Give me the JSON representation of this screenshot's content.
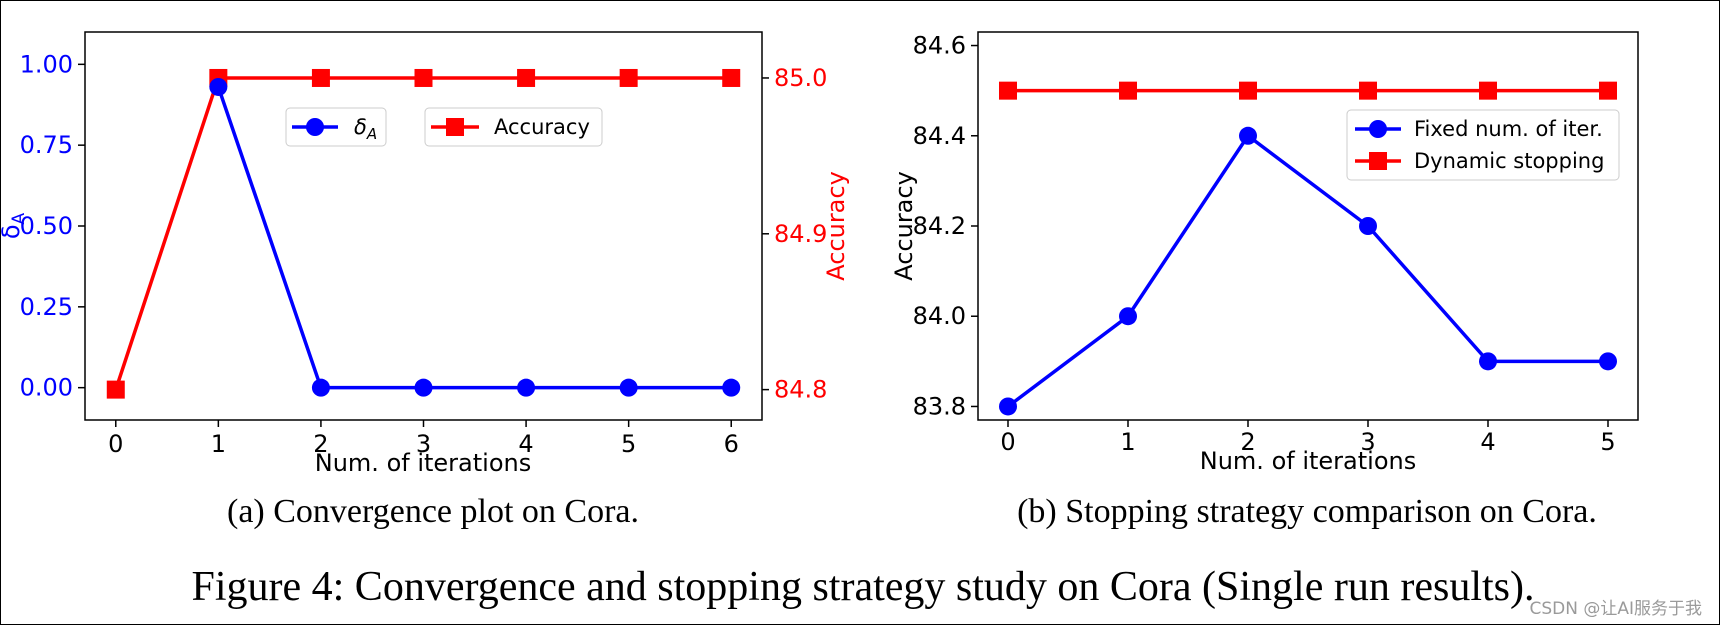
{
  "colors": {
    "blue": "#0000ff",
    "red": "#ff0000",
    "black": "#000000",
    "watermark": "#9a9a9a"
  },
  "chart_data": [
    {
      "type": "line",
      "id": "convergence",
      "caption": "(a) Convergence plot on Cora.",
      "xlabel": "Num. of iterations",
      "x": [
        0,
        1,
        2,
        3,
        4,
        5,
        6
      ],
      "xticks": [
        "0",
        "1",
        "2",
        "3",
        "4",
        "5",
        "6"
      ],
      "xlim": [
        -0.3,
        6.3
      ],
      "left_axis": {
        "label": "δ",
        "label_sub": "A",
        "ylim": [
          -0.1,
          1.1
        ],
        "ticks": [
          0.0,
          0.25,
          0.5,
          0.75,
          1.0
        ],
        "tick_labels": [
          "0.00",
          "0.25",
          "0.50",
          "0.75",
          "1.00"
        ],
        "color": "#0000ff"
      },
      "right_axis": {
        "label": "Accuracy",
        "ylim": [
          84.7805,
          85.0295
        ],
        "ticks": [
          84.8,
          84.9,
          85.0
        ],
        "tick_labels": [
          "84.8",
          "84.9",
          "85.0"
        ],
        "color": "#ff0000"
      },
      "series": [
        {
          "name": "δ",
          "name_sub": "A",
          "axis": "left",
          "marker": "circle",
          "color": "#0000ff",
          "x": [
            1,
            2,
            3,
            4,
            5,
            6
          ],
          "values": [
            0.93,
            0.0,
            0.0,
            0.0,
            0.0,
            0.0
          ]
        },
        {
          "name": "Accuracy",
          "axis": "right",
          "marker": "square",
          "color": "#ff0000",
          "x": [
            0,
            1,
            2,
            3,
            4,
            5,
            6
          ],
          "values": [
            84.8,
            85.0,
            85.0,
            85.0,
            85.0,
            85.0,
            85.0
          ]
        }
      ],
      "legend": [
        "δA",
        "Accuracy"
      ]
    },
    {
      "type": "line",
      "id": "stopping",
      "caption": "(b)  Stopping strategy comparison on Cora.",
      "xlabel": "Num. of iterations",
      "ylabel": "Accuracy",
      "x": [
        0,
        1,
        2,
        3,
        4,
        5
      ],
      "xticks": [
        "0",
        "1",
        "2",
        "3",
        "4",
        "5"
      ],
      "xlim": [
        -0.25,
        5.25
      ],
      "ylim": [
        83.77,
        84.63
      ],
      "yticks": [
        83.8,
        84.0,
        84.2,
        84.4,
        84.6
      ],
      "ytick_labels": [
        "83.8",
        "84.0",
        "84.2",
        "84.4",
        "84.6"
      ],
      "series": [
        {
          "name": "Fixed num. of iter.",
          "marker": "circle",
          "color": "#0000ff",
          "values": [
            83.8,
            84.0,
            84.4,
            84.2,
            83.9,
            83.9
          ]
        },
        {
          "name": "Dynamic stopping",
          "marker": "square",
          "color": "#ff0000",
          "values": [
            84.5,
            84.5,
            84.5,
            84.5,
            84.5,
            84.5
          ]
        }
      ],
      "legend_position": "top-right"
    }
  ],
  "figure_caption": "Figure 4: Convergence and stopping strategy study on Cora (Single run results).",
  "watermark": "CSDN @让AI服务于我"
}
